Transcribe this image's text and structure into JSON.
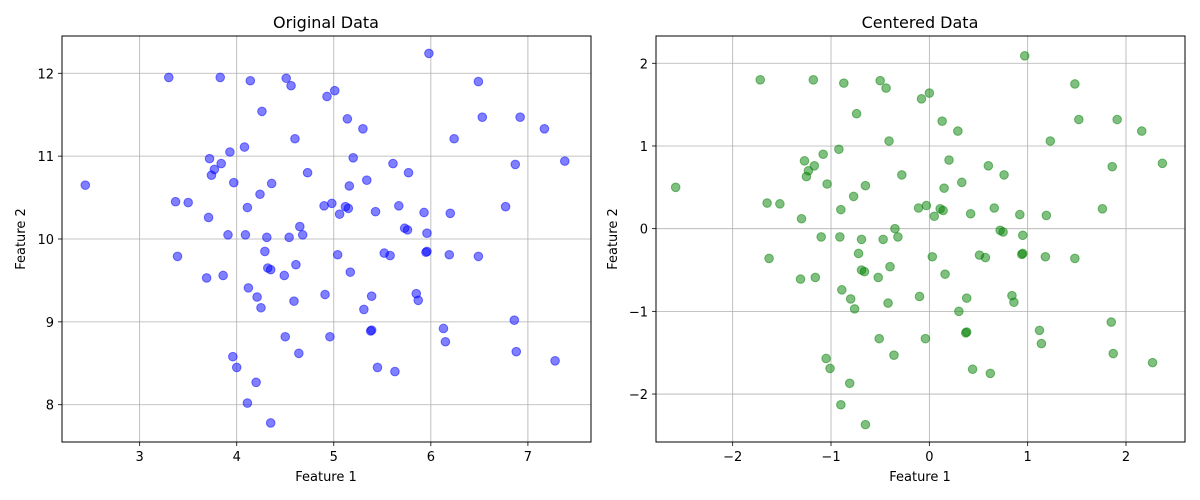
{
  "chart_data": [
    {
      "type": "scatter",
      "title": "Original Data",
      "xlabel": "Feature 1",
      "ylabel": "Feature 2",
      "xlim": [
        2.2,
        7.65
      ],
      "ylim": [
        7.55,
        12.45
      ],
      "xticks": [
        3,
        4,
        5,
        6,
        7
      ],
      "yticks": [
        8,
        9,
        10,
        11,
        12
      ],
      "grid": true,
      "color": "#0000ff",
      "points": [
        [
          2.44,
          10.65
        ],
        [
          3.3,
          11.95
        ],
        [
          3.37,
          10.45
        ],
        [
          3.39,
          9.79
        ],
        [
          3.5,
          10.44
        ],
        [
          3.69,
          9.53
        ],
        [
          3.71,
          10.26
        ],
        [
          3.72,
          10.97
        ],
        [
          3.74,
          10.77
        ],
        [
          3.77,
          10.84
        ],
        [
          3.83,
          11.95
        ],
        [
          3.84,
          10.91
        ],
        [
          3.86,
          9.56
        ],
        [
          3.91,
          10.05
        ],
        [
          3.93,
          11.05
        ],
        [
          3.96,
          8.58
        ],
        [
          3.97,
          10.68
        ],
        [
          4.0,
          8.45
        ],
        [
          4.08,
          11.11
        ],
        [
          4.09,
          10.05
        ],
        [
          4.11,
          8.02
        ],
        [
          4.11,
          10.38
        ],
        [
          4.12,
          9.41
        ],
        [
          4.14,
          11.91
        ],
        [
          4.2,
          8.27
        ],
        [
          4.21,
          9.3
        ],
        [
          4.24,
          10.54
        ],
        [
          4.25,
          9.17
        ],
        [
          4.26,
          11.54
        ],
        [
          4.29,
          9.85
        ],
        [
          4.31,
          10.02
        ],
        [
          4.32,
          9.65
        ],
        [
          4.35,
          9.63
        ],
        [
          4.35,
          7.78
        ],
        [
          4.36,
          10.67
        ],
        [
          4.49,
          9.56
        ],
        [
          4.5,
          8.82
        ],
        [
          4.51,
          11.94
        ],
        [
          4.54,
          10.02
        ],
        [
          4.56,
          11.85
        ],
        [
          4.59,
          9.25
        ],
        [
          4.6,
          11.21
        ],
        [
          4.61,
          9.69
        ],
        [
          4.64,
          8.62
        ],
        [
          4.65,
          10.15
        ],
        [
          4.68,
          10.05
        ],
        [
          4.73,
          10.8
        ],
        [
          4.9,
          10.4
        ],
        [
          4.91,
          9.33
        ],
        [
          4.93,
          11.72
        ],
        [
          4.96,
          8.82
        ],
        [
          4.98,
          10.43
        ],
        [
          5.01,
          11.79
        ],
        [
          5.04,
          9.81
        ],
        [
          5.06,
          10.3
        ],
        [
          5.12,
          10.39
        ],
        [
          5.14,
          11.45
        ],
        [
          5.15,
          10.37
        ],
        [
          5.16,
          10.64
        ],
        [
          5.17,
          9.6
        ],
        [
          5.2,
          10.98
        ],
        [
          5.3,
          11.33
        ],
        [
          5.31,
          9.15
        ],
        [
          5.34,
          10.71
        ],
        [
          5.38,
          8.89
        ],
        [
          5.39,
          9.31
        ],
        [
          5.39,
          8.9
        ],
        [
          5.43,
          10.33
        ],
        [
          5.45,
          8.45
        ],
        [
          5.52,
          9.83
        ],
        [
          5.58,
          9.8
        ],
        [
          5.61,
          10.91
        ],
        [
          5.63,
          8.4
        ],
        [
          5.67,
          10.4
        ],
        [
          5.73,
          10.13
        ],
        [
          5.76,
          10.11
        ],
        [
          5.77,
          10.8
        ],
        [
          5.85,
          9.34
        ],
        [
          5.87,
          9.26
        ],
        [
          5.93,
          10.32
        ],
        [
          5.95,
          9.84
        ],
        [
          5.96,
          9.85
        ],
        [
          5.96,
          10.07
        ],
        [
          5.98,
          12.24
        ],
        [
          6.13,
          8.92
        ],
        [
          6.15,
          8.76
        ],
        [
          6.19,
          9.81
        ],
        [
          6.2,
          10.31
        ],
        [
          6.24,
          11.21
        ],
        [
          6.49,
          11.9
        ],
        [
          6.49,
          9.79
        ],
        [
          6.53,
          11.47
        ],
        [
          6.77,
          10.39
        ],
        [
          6.86,
          9.02
        ],
        [
          6.87,
          10.9
        ],
        [
          6.88,
          8.64
        ],
        [
          6.92,
          11.47
        ],
        [
          7.17,
          11.33
        ],
        [
          7.28,
          8.53
        ],
        [
          7.38,
          10.94
        ]
      ]
    },
    {
      "type": "scatter",
      "title": "Centered Data",
      "xlabel": "Feature 1",
      "ylabel": "Feature 2",
      "xlim": [
        -2.78,
        2.6
      ],
      "ylim": [
        -2.58,
        2.33
      ],
      "xticks": [
        -2,
        -1,
        0,
        1,
        2
      ],
      "yticks": [
        -2,
        -1,
        0,
        1,
        2
      ],
      "ytick_labels": [
        "−2",
        "−1",
        "0",
        "1",
        "2"
      ],
      "xtick_labels": [
        "−2",
        "−1",
        "0",
        "1",
        "2"
      ],
      "grid": true,
      "color": "#008000",
      "points": [
        [
          -2.58,
          0.5
        ],
        [
          -1.72,
          1.8
        ],
        [
          -1.65,
          0.31
        ],
        [
          -1.63,
          -0.36
        ],
        [
          -1.52,
          0.3
        ],
        [
          -1.31,
          -0.61
        ],
        [
          -1.3,
          0.12
        ],
        [
          -1.27,
          0.82
        ],
        [
          -1.25,
          0.63
        ],
        [
          -1.23,
          0.7
        ],
        [
          -1.18,
          1.8
        ],
        [
          -1.17,
          0.76
        ],
        [
          -1.16,
          -0.59
        ],
        [
          -1.1,
          -0.1
        ],
        [
          -1.08,
          0.9
        ],
        [
          -1.05,
          -1.57
        ],
        [
          -1.04,
          0.54
        ],
        [
          -1.01,
          -1.69
        ],
        [
          -0.92,
          0.96
        ],
        [
          -0.91,
          -0.1
        ],
        [
          -0.9,
          -2.13
        ],
        [
          -0.9,
          0.23
        ],
        [
          -0.89,
          -0.74
        ],
        [
          -0.87,
          1.76
        ],
        [
          -0.81,
          -1.87
        ],
        [
          -0.8,
          -0.85
        ],
        [
          -0.77,
          0.39
        ],
        [
          -0.76,
          -0.97
        ],
        [
          -0.74,
          1.39
        ],
        [
          -0.72,
          -0.3
        ],
        [
          -0.69,
          -0.13
        ],
        [
          -0.69,
          -0.5
        ],
        [
          -0.66,
          -0.52
        ],
        [
          -0.65,
          -2.37
        ],
        [
          -0.65,
          0.52
        ],
        [
          -0.52,
          -0.59
        ],
        [
          -0.51,
          -1.33
        ],
        [
          -0.5,
          1.79
        ],
        [
          -0.47,
          -0.13
        ],
        [
          -0.44,
          1.7
        ],
        [
          -0.42,
          -0.9
        ],
        [
          -0.41,
          1.06
        ],
        [
          -0.4,
          -0.46
        ],
        [
          -0.36,
          -1.53
        ],
        [
          -0.35,
          0.0
        ],
        [
          -0.32,
          -0.1
        ],
        [
          -0.28,
          0.65
        ],
        [
          -0.11,
          0.25
        ],
        [
          -0.1,
          -0.82
        ],
        [
          -0.08,
          1.57
        ],
        [
          -0.04,
          -1.33
        ],
        [
          -0.03,
          0.28
        ],
        [
          0.0,
          1.64
        ],
        [
          0.03,
          -0.34
        ],
        [
          0.05,
          0.15
        ],
        [
          0.11,
          0.24
        ],
        [
          0.13,
          1.3
        ],
        [
          0.14,
          0.22
        ],
        [
          0.15,
          0.49
        ],
        [
          0.16,
          -0.55
        ],
        [
          0.2,
          0.83
        ],
        [
          0.29,
          1.18
        ],
        [
          0.3,
          -1.0
        ],
        [
          0.33,
          0.56
        ],
        [
          0.37,
          -1.26
        ],
        [
          0.38,
          -0.84
        ],
        [
          0.38,
          -1.25
        ],
        [
          0.42,
          0.18
        ],
        [
          0.44,
          -1.7
        ],
        [
          0.51,
          -0.32
        ],
        [
          0.57,
          -0.35
        ],
        [
          0.6,
          0.76
        ],
        [
          0.62,
          -1.75
        ],
        [
          0.66,
          0.25
        ],
        [
          0.72,
          -0.02
        ],
        [
          0.75,
          -0.04
        ],
        [
          0.76,
          0.65
        ],
        [
          0.84,
          -0.81
        ],
        [
          0.86,
          -0.89
        ],
        [
          0.92,
          0.17
        ],
        [
          0.94,
          -0.31
        ],
        [
          0.95,
          -0.3
        ],
        [
          0.95,
          -0.08
        ],
        [
          0.97,
          2.09
        ],
        [
          1.12,
          -1.23
        ],
        [
          1.14,
          -1.39
        ],
        [
          1.18,
          -0.34
        ],
        [
          1.19,
          0.16
        ],
        [
          1.23,
          1.06
        ],
        [
          1.48,
          1.75
        ],
        [
          1.48,
          -0.36
        ],
        [
          1.52,
          1.32
        ],
        [
          1.76,
          0.24
        ],
        [
          1.85,
          -1.13
        ],
        [
          1.86,
          0.75
        ],
        [
          1.87,
          -1.51
        ],
        [
          1.91,
          1.32
        ],
        [
          2.16,
          1.18
        ],
        [
          2.27,
          -1.62
        ],
        [
          2.37,
          0.79
        ]
      ]
    }
  ]
}
